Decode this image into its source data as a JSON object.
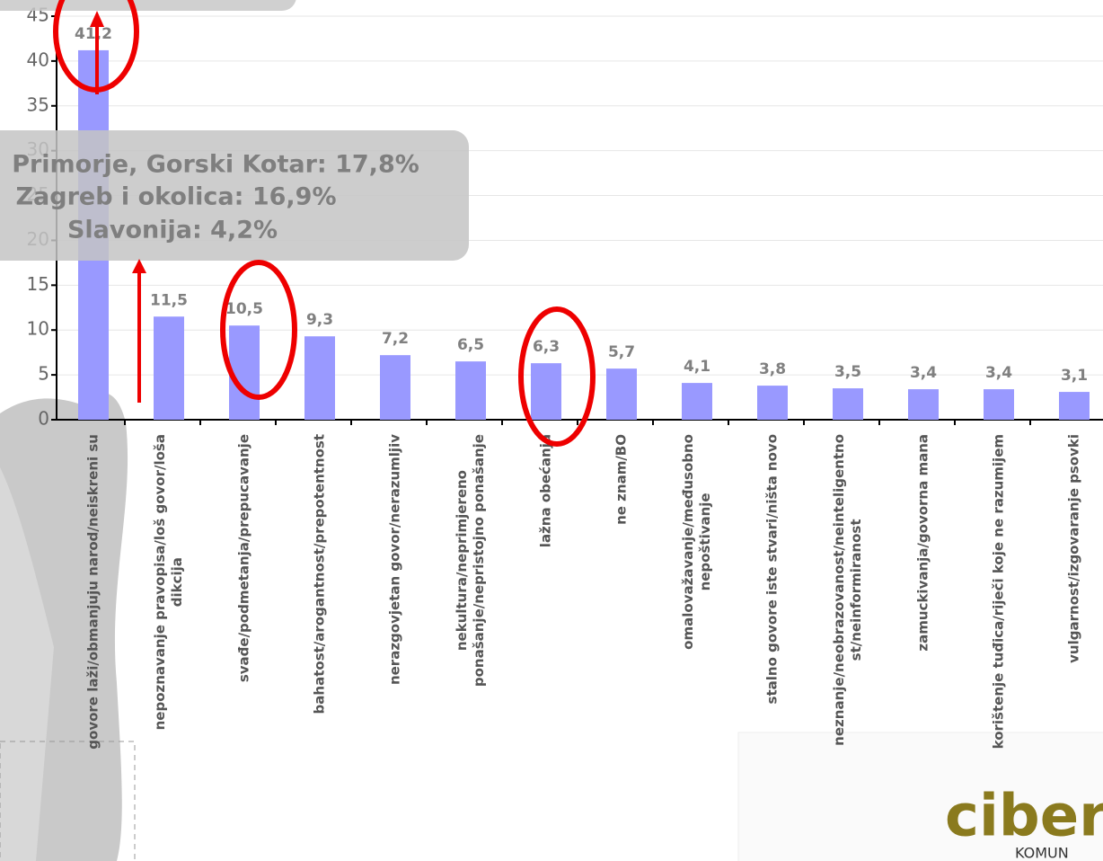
{
  "chart_data": {
    "type": "bar",
    "categories": [
      [
        "govore laži/obmanjuju narod/neiskreni su"
      ],
      [
        "nepoznavanje pravopisa/loš govor/loša",
        "dikcija"
      ],
      [
        "svađe/podmetanja/prepucavanje"
      ],
      [
        "bahatost/arogantnost/prepotentnost"
      ],
      [
        "nerazgovjetan govor/nerazumljiv"
      ],
      [
        "nekultura/neprimjereno",
        "ponašanje/nepristojno ponašanje"
      ],
      [
        "lažna obećanja"
      ],
      [
        "ne znam/BO"
      ],
      [
        "omalovažavanje/međusobno",
        "nepoštivanje"
      ],
      [
        "stalno govore iste stvari/ništa novo"
      ],
      [
        "neznanje/neobrazovanost/neinteligentno",
        "st/neinformiranost"
      ],
      [
        "zamuckivanja/govorna mana"
      ],
      [
        "korištenje tuđica/riječi koje ne razumijem"
      ],
      [
        "vulgarnost/izgovaranje psovki"
      ]
    ],
    "values": [
      41.2,
      11.5,
      10.5,
      9.3,
      7.2,
      6.5,
      6.3,
      5.7,
      4.1,
      3.8,
      3.5,
      3.4,
      3.4,
      3.1
    ],
    "value_labels": [
      "41,2",
      "11,5",
      "10,5",
      "9,3",
      "7,2",
      "6,5",
      "6,3",
      "5,7",
      "4,1",
      "3,8",
      "3,5",
      "3,4",
      "3,4",
      "3,1"
    ],
    "color": "#9999ff",
    "ylim": [
      0,
      45
    ],
    "yticks": [
      0,
      5,
      10,
      15,
      20,
      25,
      30,
      35,
      40,
      45
    ],
    "grid": true,
    "annotation": [
      "Primorje, Gorski Kotar: 17,8%",
      "Zagreb i okolica: 16,9%",
      "Slavonija: 4,2%"
    ]
  },
  "logo": {
    "name": "cibero",
    "sub": "KOMUN"
  }
}
